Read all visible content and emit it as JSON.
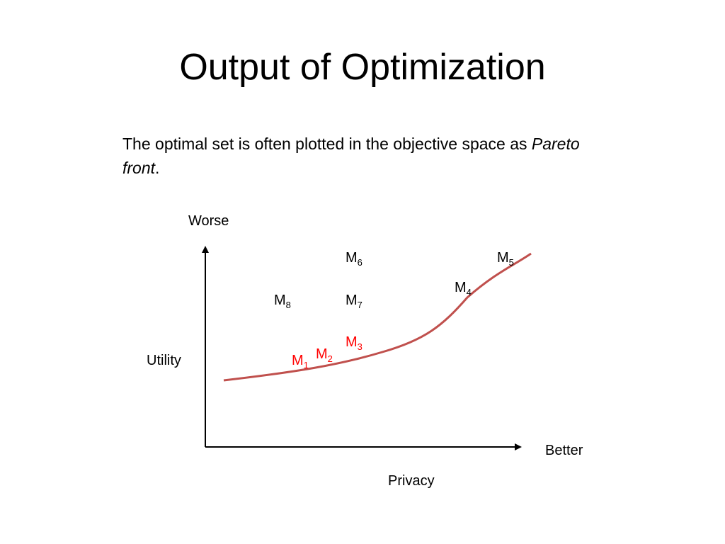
{
  "slide": {
    "title": "Output of Optimization",
    "body_main": "The optimal set is often plotted in the objective space as",
    "body_italic": "Pareto front",
    "body_end": "."
  },
  "diagram": {
    "labels": {
      "worse": "Worse",
      "utility": "Utility",
      "better": "Better",
      "privacy": "Privacy"
    },
    "models": [
      {
        "id": "m6",
        "letter": "M",
        "sub": "6",
        "on_front": false
      },
      {
        "id": "m5",
        "letter": "M",
        "sub": "5",
        "on_front": false
      },
      {
        "id": "m4",
        "letter": "M",
        "sub": "4",
        "on_front": false
      },
      {
        "id": "m8",
        "letter": "M",
        "sub": "8",
        "on_front": false
      },
      {
        "id": "m7",
        "letter": "M",
        "sub": "7",
        "on_front": false
      },
      {
        "id": "m3",
        "letter": "M",
        "sub": "3",
        "on_front": true
      },
      {
        "id": "m2",
        "letter": "M",
        "sub": "2",
        "on_front": true
      },
      {
        "id": "m1",
        "letter": "M",
        "sub": "1",
        "on_front": true
      }
    ],
    "colors": {
      "axis": "#000000",
      "pareto_curve": "#c0504d",
      "front_label": "#ff0000",
      "other_label": "#000000"
    }
  }
}
